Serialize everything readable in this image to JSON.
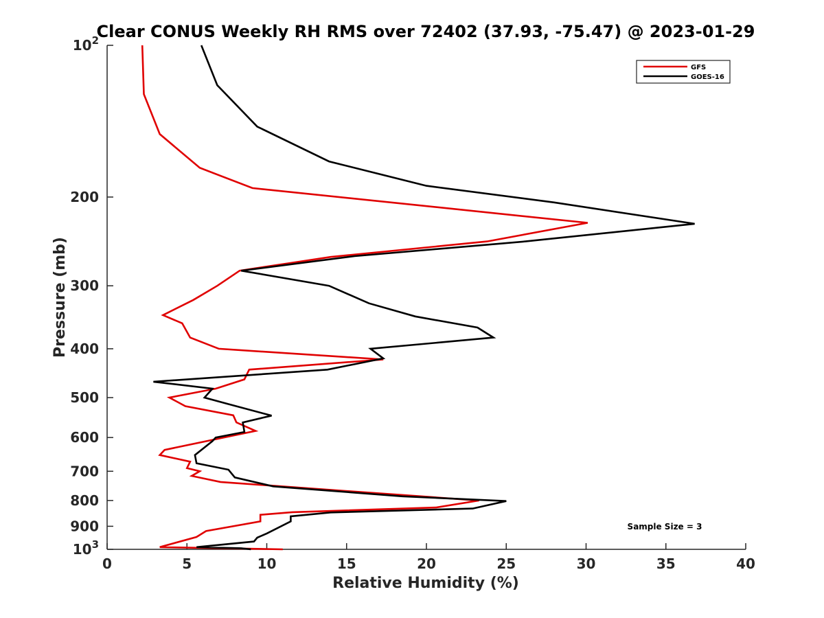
{
  "chart_data": {
    "type": "line",
    "title": "Clear CONUS Weekly RH RMS over 72402 (37.93, -75.47) @ 2023-01-29",
    "xlabel": "Relative Humidity (%)",
    "ylabel": "Pressure (mb)",
    "xlim": [
      0,
      40
    ],
    "ylim": [
      100,
      1000
    ],
    "yscale": "log",
    "y_reversed": true,
    "xticks": [
      0,
      5,
      10,
      15,
      20,
      25,
      30,
      35,
      40
    ],
    "yticks": [
      {
        "value": 100,
        "label": "10",
        "sup": "2"
      },
      {
        "value": 200,
        "label": "200",
        "sup": ""
      },
      {
        "value": 300,
        "label": "300",
        "sup": ""
      },
      {
        "value": 400,
        "label": "400",
        "sup": ""
      },
      {
        "value": 500,
        "label": "500",
        "sup": ""
      },
      {
        "value": 600,
        "label": "600",
        "sup": ""
      },
      {
        "value": 700,
        "label": "700",
        "sup": ""
      },
      {
        "value": 800,
        "label": "800",
        "sup": ""
      },
      {
        "value": 900,
        "label": "900",
        "sup": ""
      },
      {
        "value": 1000,
        "label": "10",
        "sup": "3"
      }
    ],
    "legend_location": "top-right",
    "series": [
      {
        "name": "GFS",
        "color": "#e00000",
        "points": [
          [
            2.2,
            100
          ],
          [
            2.3,
            125
          ],
          [
            3.3,
            150
          ],
          [
            5.8,
            175
          ],
          [
            9.1,
            192
          ],
          [
            30.1,
            225
          ],
          [
            23.8,
            245
          ],
          [
            14.0,
            263
          ],
          [
            8.3,
            280
          ],
          [
            6.9,
            300
          ],
          [
            5.4,
            320
          ],
          [
            3.5,
            343
          ],
          [
            4.7,
            356
          ],
          [
            5.2,
            380
          ],
          [
            7.0,
            400
          ],
          [
            17.3,
            420
          ],
          [
            8.9,
            440
          ],
          [
            8.6,
            460
          ],
          [
            6.8,
            480
          ],
          [
            3.9,
            500
          ],
          [
            4.9,
            520
          ],
          [
            7.9,
            542
          ],
          [
            8.1,
            560
          ],
          [
            9.3,
            582
          ],
          [
            3.6,
            635
          ],
          [
            3.3,
            650
          ],
          [
            5.2,
            670
          ],
          [
            5.0,
            690
          ],
          [
            5.8,
            700
          ],
          [
            5.3,
            715
          ],
          [
            7.1,
            735
          ],
          [
            23.3,
            800
          ],
          [
            20.6,
            826
          ],
          [
            11.6,
            844
          ],
          [
            9.6,
            854
          ],
          [
            9.6,
            880
          ],
          [
            6.2,
            920
          ],
          [
            5.6,
            945
          ],
          [
            3.3,
            990
          ],
          [
            11.0,
            1000
          ]
        ]
      },
      {
        "name": "GOES-16",
        "color": "#000000",
        "points": [
          [
            5.9,
            100
          ],
          [
            6.9,
            120
          ],
          [
            9.4,
            145
          ],
          [
            13.9,
            170
          ],
          [
            20.0,
            190
          ],
          [
            28.0,
            205
          ],
          [
            36.8,
            226
          ],
          [
            26.2,
            245
          ],
          [
            15.5,
            262
          ],
          [
            8.4,
            280
          ],
          [
            13.9,
            300
          ],
          [
            16.4,
            325
          ],
          [
            19.3,
            345
          ],
          [
            23.2,
            363
          ],
          [
            24.2,
            380
          ],
          [
            16.5,
            400
          ],
          [
            17.3,
            418
          ],
          [
            13.8,
            440
          ],
          [
            2.9,
            465
          ],
          [
            6.6,
            480
          ],
          [
            6.1,
            500
          ],
          [
            7.6,
            515
          ],
          [
            10.3,
            543
          ],
          [
            8.5,
            560
          ],
          [
            8.6,
            585
          ],
          [
            6.8,
            600
          ],
          [
            6.6,
            610
          ],
          [
            5.5,
            650
          ],
          [
            5.6,
            675
          ],
          [
            7.6,
            695
          ],
          [
            8.0,
            720
          ],
          [
            10.4,
            750
          ],
          [
            18.5,
            785
          ],
          [
            25.0,
            802
          ],
          [
            22.9,
            830
          ],
          [
            14.0,
            845
          ],
          [
            11.5,
            860
          ],
          [
            11.5,
            880
          ],
          [
            10.0,
            930
          ],
          [
            9.4,
            948
          ],
          [
            9.2,
            965
          ],
          [
            5.6,
            990
          ],
          [
            8.4,
            995
          ],
          [
            9.0,
            1000
          ]
        ]
      }
    ],
    "annotation": "Sample Size = 3"
  }
}
